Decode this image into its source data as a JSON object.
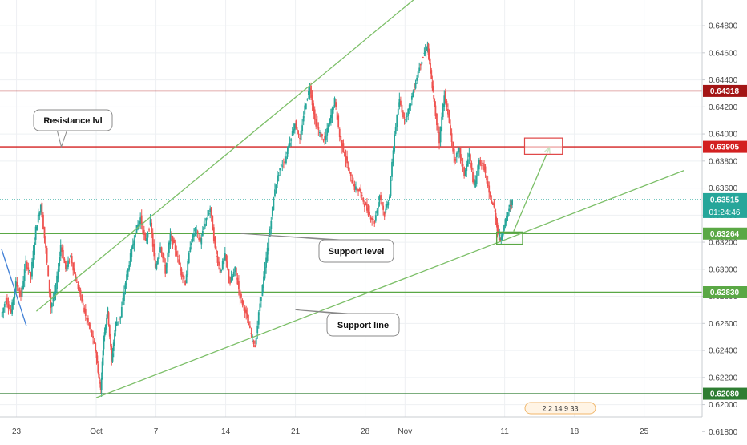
{
  "chart_data": {
    "type": "candlestick",
    "ylim": [
      0.6179,
      0.6499
    ],
    "y_ticks": [
      "0.64800",
      "0.64600",
      "0.64400",
      "0.64200",
      "0.64000",
      "0.63800",
      "0.63600",
      "0.63400",
      "0.63200",
      "0.63000",
      "0.62800",
      "0.62600",
      "0.62400",
      "0.62200",
      "0.62000",
      "0.61800"
    ],
    "x_ticks": [
      {
        "label": "23",
        "day": -8
      },
      {
        "label": "Oct",
        "day": 0
      },
      {
        "label": "7",
        "day": 6
      },
      {
        "label": "14",
        "day": 13
      },
      {
        "label": "21",
        "day": 20
      },
      {
        "label": "28",
        "day": 27
      },
      {
        "label": "Nov",
        "day": 31
      },
      {
        "label": "11",
        "day": 41
      },
      {
        "label": "18",
        "day": 48
      },
      {
        "label": "25",
        "day": 55
      }
    ],
    "price_path": [
      [
        -9.5,
        0.6265
      ],
      [
        -9.0,
        0.6278
      ],
      [
        -8.5,
        0.6268
      ],
      [
        -8.0,
        0.629
      ],
      [
        -7.5,
        0.628
      ],
      [
        -7.0,
        0.6305
      ],
      [
        -6.5,
        0.6295
      ],
      [
        -6.0,
        0.633
      ],
      [
        -5.5,
        0.6348
      ],
      [
        -5.0,
        0.6315
      ],
      [
        -4.5,
        0.6272
      ],
      [
        -4.0,
        0.6285
      ],
      [
        -3.5,
        0.6318
      ],
      [
        -3.0,
        0.63
      ],
      [
        -2.5,
        0.631
      ],
      [
        -2.0,
        0.6292
      ],
      [
        -1.5,
        0.628
      ],
      [
        -1.0,
        0.6265
      ],
      [
        -0.5,
        0.6255
      ],
      [
        0.0,
        0.624
      ],
      [
        0.3,
        0.622
      ],
      [
        0.5,
        0.6212
      ],
      [
        0.8,
        0.625
      ],
      [
        1.2,
        0.627
      ],
      [
        1.6,
        0.6232
      ],
      [
        2.0,
        0.626
      ],
      [
        2.5,
        0.6265
      ],
      [
        3.0,
        0.629
      ],
      [
        3.5,
        0.631
      ],
      [
        4.0,
        0.6328
      ],
      [
        4.5,
        0.6338
      ],
      [
        5.0,
        0.632
      ],
      [
        5.5,
        0.6335
      ],
      [
        6.0,
        0.63
      ],
      [
        6.5,
        0.6318
      ],
      [
        7.0,
        0.6298
      ],
      [
        7.5,
        0.6325
      ],
      [
        8.0,
        0.6315
      ],
      [
        8.5,
        0.63
      ],
      [
        9.0,
        0.629
      ],
      [
        9.5,
        0.6318
      ],
      [
        10.0,
        0.633
      ],
      [
        10.5,
        0.632
      ],
      [
        11.0,
        0.6335
      ],
      [
        11.5,
        0.6345
      ],
      [
        12.0,
        0.6315
      ],
      [
        12.5,
        0.6298
      ],
      [
        13.0,
        0.631
      ],
      [
        13.5,
        0.629
      ],
      [
        14.0,
        0.63
      ],
      [
        14.5,
        0.628
      ],
      [
        15.0,
        0.627
      ],
      [
        15.5,
        0.6255
      ],
      [
        16.0,
        0.6243
      ],
      [
        16.5,
        0.6275
      ],
      [
        17.0,
        0.63
      ],
      [
        17.5,
        0.633
      ],
      [
        18.0,
        0.636
      ],
      [
        18.5,
        0.6375
      ],
      [
        19.0,
        0.638
      ],
      [
        19.5,
        0.6395
      ],
      [
        20.0,
        0.6408
      ],
      [
        20.5,
        0.6395
      ],
      [
        21.0,
        0.642
      ],
      [
        21.5,
        0.6435
      ],
      [
        22.0,
        0.641
      ],
      [
        22.5,
        0.64
      ],
      [
        23.0,
        0.6395
      ],
      [
        23.5,
        0.641
      ],
      [
        24.0,
        0.6425
      ],
      [
        24.5,
        0.6398
      ],
      [
        25.0,
        0.6385
      ],
      [
        25.5,
        0.637
      ],
      [
        26.0,
        0.636
      ],
      [
        26.5,
        0.6358
      ],
      [
        27.0,
        0.6348
      ],
      [
        27.5,
        0.634
      ],
      [
        28.0,
        0.6335
      ],
      [
        28.5,
        0.6355
      ],
      [
        29.0,
        0.634
      ],
      [
        29.5,
        0.6355
      ],
      [
        30.0,
        0.64
      ],
      [
        30.5,
        0.6425
      ],
      [
        31.0,
        0.641
      ],
      [
        31.5,
        0.642
      ],
      [
        32.0,
        0.6435
      ],
      [
        32.5,
        0.645
      ],
      [
        33.0,
        0.646
      ],
      [
        33.3,
        0.6465
      ],
      [
        33.7,
        0.644
      ],
      [
        34.0,
        0.642
      ],
      [
        34.5,
        0.6395
      ],
      [
        35.0,
        0.643
      ],
      [
        35.5,
        0.6408
      ],
      [
        36.0,
        0.638
      ],
      [
        36.5,
        0.6388
      ],
      [
        37.0,
        0.637
      ],
      [
        37.5,
        0.6385
      ],
      [
        38.0,
        0.636
      ],
      [
        38.5,
        0.638
      ],
      [
        39.0,
        0.6375
      ],
      [
        39.5,
        0.6355
      ],
      [
        40.0,
        0.6345
      ],
      [
        40.3,
        0.633
      ],
      [
        40.6,
        0.6322
      ],
      [
        41.0,
        0.6332
      ],
      [
        41.5,
        0.6345
      ],
      [
        41.8,
        0.635
      ]
    ],
    "horizontal_levels": [
      {
        "price": 0.64318,
        "label": "0.64318",
        "color": "#a31515",
        "line_color": "#b22222"
      },
      {
        "price": 0.63905,
        "label": "0.63905",
        "color": "#d32020",
        "line_color": "#d32020"
      },
      {
        "price": 0.63264,
        "label": "0.63264",
        "color": "#5aa845",
        "line_color": "#5aa845"
      },
      {
        "price": 0.6283,
        "label": "0.62830",
        "color": "#5aa845",
        "line_color": "#5aa845"
      },
      {
        "price": 0.6208,
        "label": "0.62080",
        "color": "#2e7d32",
        "line_color": "#2e7d32"
      }
    ],
    "current_price": {
      "label": "0.63515",
      "price": 0.63515,
      "timer": "01:24:46",
      "color": "#26a69a"
    },
    "trendlines": [
      {
        "kind": "channel-upper",
        "from": [
          -6.0,
          0.6269
        ],
        "to": [
          34.8,
          0.6517
        ]
      },
      {
        "kind": "support-line",
        "from": [
          0.0,
          0.6205
        ],
        "to": [
          59.0,
          0.6373
        ]
      },
      {
        "kind": "old-down",
        "from": [
          -9.5,
          0.6315
        ],
        "to": [
          -7.0,
          0.6258
        ]
      }
    ],
    "projection": {
      "from": [
        41.9,
        0.6328
      ],
      "to": [
        45.5,
        0.639
      ]
    },
    "target_box": {
      "d0": 43.0,
      "d1": 46.8,
      "p0": 0.6385,
      "p1": 0.6397
    },
    "entry_box": {
      "d0": 40.2,
      "d1": 42.8,
      "p0": 0.63185,
      "p1": 0.63275
    },
    "callouts": [
      {
        "text": "Resistance lvl",
        "anchor": [
          -3.5,
          0.63905
        ]
      },
      {
        "text": "Support level",
        "anchor": [
          14.5,
          0.63264
        ]
      },
      {
        "text": "Support line",
        "anchor": [
          20.0,
          0.627
        ]
      }
    ],
    "event_badge": "2 2 14 9 33",
    "colors": {
      "up": "#26a69a",
      "down": "#ef5350",
      "line": "#7cbf68",
      "grid": "#eef0f3"
    }
  }
}
